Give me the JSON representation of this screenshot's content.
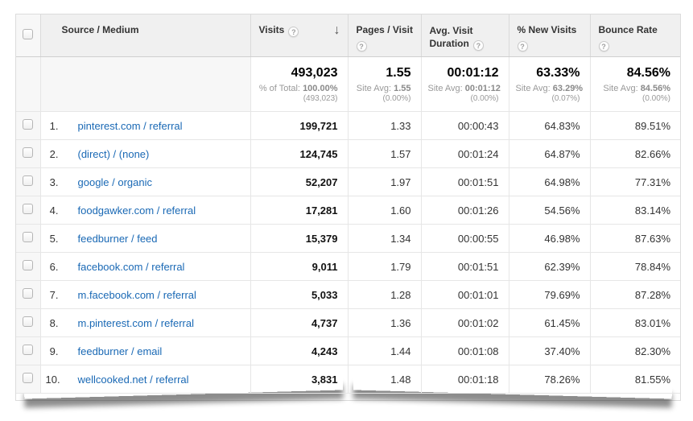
{
  "table": {
    "columns": {
      "source_medium": "Source / Medium",
      "visits": "Visits",
      "pages_visit": "Pages / Visit",
      "avg_duration": "Avg. Visit Duration",
      "new_visits": "% New Visits",
      "bounce_rate": "Bounce Rate"
    },
    "help_icon": "?",
    "sort": {
      "column": "Visits",
      "direction": "descending",
      "arrow": "↓"
    },
    "summary": {
      "visits": {
        "value": "493,023",
        "label": "% of Total:",
        "label_value": "100.00%",
        "sub": "(493,023)"
      },
      "pages_visit": {
        "value": "1.55",
        "label": "Site Avg:",
        "label_value": "1.55",
        "sub": "(0.00%)"
      },
      "avg_duration": {
        "value": "00:01:12",
        "label": "Site Avg:",
        "label_value": "00:01:12",
        "sub": "(0.00%)"
      },
      "new_visits": {
        "value": "63.33%",
        "label": "Site Avg:",
        "label_value": "63.29%",
        "sub": "(0.07%)"
      },
      "bounce_rate": {
        "value": "84.56%",
        "label": "Site Avg:",
        "label_value": "84.56%",
        "sub": "(0.00%)"
      }
    },
    "rows": [
      {
        "rank": "1.",
        "source": "pinterest.com / referral",
        "visits": "199,721",
        "pages_visit": "1.33",
        "avg_duration": "00:00:43",
        "new_visits": "64.83%",
        "bounce_rate": "89.51%"
      },
      {
        "rank": "2.",
        "source": "(direct) / (none)",
        "visits": "124,745",
        "pages_visit": "1.57",
        "avg_duration": "00:01:24",
        "new_visits": "64.87%",
        "bounce_rate": "82.66%"
      },
      {
        "rank": "3.",
        "source": "google / organic",
        "visits": "52,207",
        "pages_visit": "1.97",
        "avg_duration": "00:01:51",
        "new_visits": "64.98%",
        "bounce_rate": "77.31%"
      },
      {
        "rank": "4.",
        "source": "foodgawker.com / referral",
        "visits": "17,281",
        "pages_visit": "1.60",
        "avg_duration": "00:01:26",
        "new_visits": "54.56%",
        "bounce_rate": "83.14%"
      },
      {
        "rank": "5.",
        "source": "feedburner / feed",
        "visits": "15,379",
        "pages_visit": "1.34",
        "avg_duration": "00:00:55",
        "new_visits": "46.98%",
        "bounce_rate": "87.63%"
      },
      {
        "rank": "6.",
        "source": "facebook.com / referral",
        "visits": "9,011",
        "pages_visit": "1.79",
        "avg_duration": "00:01:51",
        "new_visits": "62.39%",
        "bounce_rate": "78.84%"
      },
      {
        "rank": "7.",
        "source": "m.facebook.com / referral",
        "visits": "5,033",
        "pages_visit": "1.28",
        "avg_duration": "00:01:01",
        "new_visits": "79.69%",
        "bounce_rate": "87.28%"
      },
      {
        "rank": "8.",
        "source": "m.pinterest.com / referral",
        "visits": "4,737",
        "pages_visit": "1.36",
        "avg_duration": "00:01:02",
        "new_visits": "61.45%",
        "bounce_rate": "83.01%"
      },
      {
        "rank": "9.",
        "source": "feedburner / email",
        "visits": "4,243",
        "pages_visit": "1.44",
        "avg_duration": "00:01:08",
        "new_visits": "37.40%",
        "bounce_rate": "82.30%"
      },
      {
        "rank": "10.",
        "source": "wellcooked.net / referral",
        "visits": "3,831",
        "pages_visit": "1.48",
        "avg_duration": "00:01:18",
        "new_visits": "78.26%",
        "bounce_rate": "81.55%"
      }
    ]
  },
  "colors": {
    "link_blue": "#1a69b5",
    "header_bg": "#f0f0f0",
    "row_border": "#e6e6e6",
    "header_border": "#cfcfcf",
    "summary_gray": "#999999",
    "sort_arrow": "#555555"
  }
}
